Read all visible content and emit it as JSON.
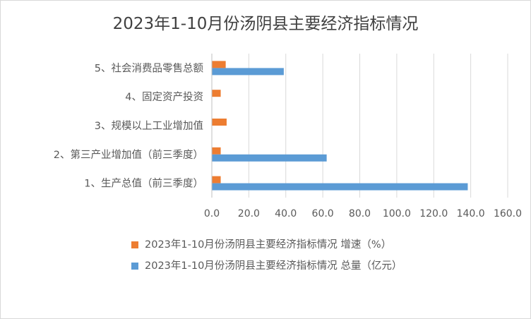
{
  "chart_data": {
    "type": "bar",
    "orientation": "horizontal",
    "title": "2023年1-10月份汤阴县主要经济指标情况",
    "categories": [
      "1、生产总值（前三季度）",
      "2、第三产业增加值（前三季度）",
      "3、规模以上工业增加值",
      "4、固定资产投资",
      "5、社会消费品零售总额"
    ],
    "series": [
      {
        "name": "2023年1-10月份汤阴县主要经济指标情况 增速（%）",
        "color": "#ed7d31",
        "values": [
          4.8,
          4.8,
          8.0,
          4.8,
          7.5
        ]
      },
      {
        "name": "2023年1-10月份汤阴县主要经济指标情况 总量（亿元）",
        "color": "#5b9bd5",
        "values": [
          138.4,
          62.1,
          null,
          null,
          38.9
        ]
      }
    ],
    "xlim": [
      0,
      160
    ],
    "xticks": [
      "0.0",
      "20.0",
      "40.0",
      "60.0",
      "80.0",
      "100.0",
      "120.0",
      "140.0",
      "160.0"
    ],
    "grid": true,
    "legend_position": "bottom"
  }
}
